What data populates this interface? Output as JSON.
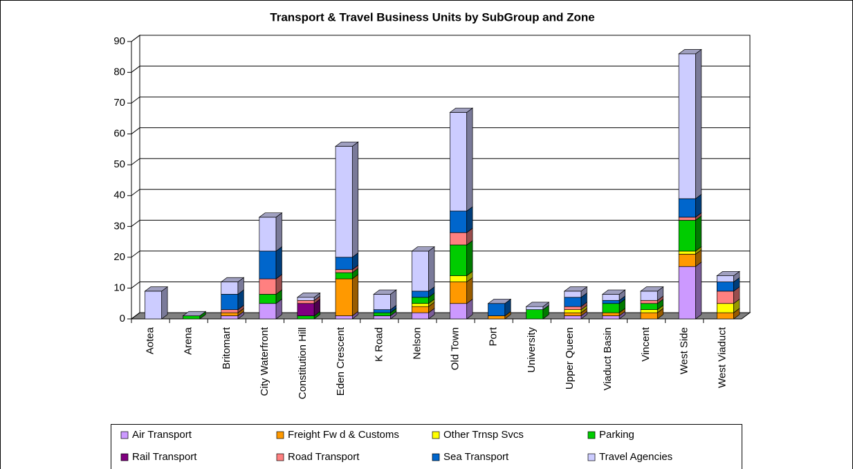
{
  "chart_data": {
    "type": "bar",
    "stacked": true,
    "title": "Transport & Travel Business Units by SubGroup and Zone",
    "categories": [
      "Aotea",
      "Arena",
      "Britomart",
      "City Waterfront",
      "Constitution Hill",
      "Eden Crescent",
      "K Road",
      "Nelson",
      "Old Town",
      "Port",
      "University",
      "Upper Queen",
      "Viaduct Basin",
      "Vincent",
      "West Side",
      "West Viaduct"
    ],
    "series": [
      {
        "name": "Air Transport",
        "color": "#cc99ff",
        "values": [
          0,
          0,
          1,
          5,
          0,
          1,
          1,
          2,
          5,
          0,
          0,
          1,
          1,
          0,
          17,
          0
        ]
      },
      {
        "name": "Freight Fw d & Customs",
        "color": "#ff9900",
        "values": [
          0,
          0,
          1,
          0,
          0,
          12,
          0,
          2,
          7,
          1,
          0,
          1,
          1,
          2,
          4,
          2
        ]
      },
      {
        "name": "Other Trnsp Svcs",
        "color": "#ffff00",
        "values": [
          0,
          0,
          0,
          0,
          0,
          0,
          0,
          1,
          2,
          0,
          0,
          1,
          0,
          1,
          1,
          3
        ]
      },
      {
        "name": "Parking",
        "color": "#00cc00",
        "values": [
          0,
          1,
          0,
          3,
          1,
          2,
          1,
          2,
          10,
          0,
          3,
          0,
          3,
          2,
          10,
          0
        ]
      },
      {
        "name": "Rail Transport",
        "color": "#800080",
        "values": [
          0,
          0,
          0,
          0,
          4,
          0,
          0,
          0,
          0,
          0,
          0,
          0,
          0,
          0,
          0,
          0
        ]
      },
      {
        "name": "Road Transport",
        "color": "#ff8080",
        "values": [
          0,
          0,
          1,
          5,
          1,
          1,
          0,
          0,
          4,
          0,
          0,
          1,
          0,
          1,
          1,
          4
        ]
      },
      {
        "name": "Sea Transport",
        "color": "#0066cc",
        "values": [
          0,
          0,
          5,
          9,
          0,
          4,
          1,
          2,
          7,
          4,
          0,
          3,
          1,
          0,
          6,
          3
        ]
      },
      {
        "name": "Travel Agencies",
        "color": "#ccccff",
        "values": [
          9,
          0,
          4,
          11,
          1,
          36,
          5,
          13,
          32,
          0,
          1,
          2,
          2,
          3,
          47,
          2
        ]
      }
    ],
    "ylim": [
      0,
      90
    ],
    "yticks": [
      0,
      10,
      20,
      30,
      40,
      50,
      60,
      70,
      80,
      90
    ],
    "grid": true,
    "legend": "bottom"
  }
}
